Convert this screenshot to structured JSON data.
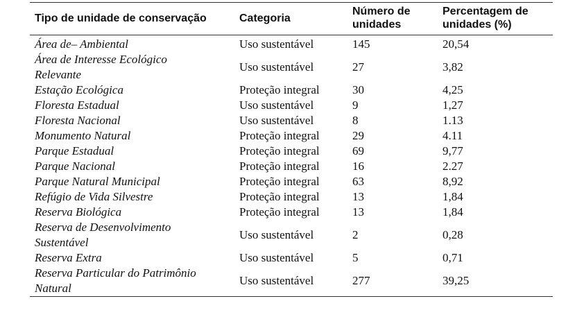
{
  "table": {
    "columns": [
      "Tipo de unidade de conservação",
      "Categoria",
      "Número de unidades",
      "Percentagem de unidades (%)"
    ],
    "rows": [
      [
        "Área de– Ambiental",
        "Uso sustentável",
        "145",
        "20,54"
      ],
      [
        "Área de Interesse Ecológico Relevante",
        "Uso sustentável",
        "27",
        "3,82"
      ],
      [
        "Estação Ecológica",
        "Proteção integral",
        "30",
        "4,25"
      ],
      [
        "Floresta Estadual",
        "Uso sustentável",
        "9",
        "1,27"
      ],
      [
        "Floresta Nacional",
        "Uso sustentável",
        "8",
        "1.13"
      ],
      [
        "Monumento Natural",
        "Proteção integral",
        "29",
        "4.11"
      ],
      [
        "Parque Estadual",
        "Proteção integral",
        "69",
        "9,77"
      ],
      [
        "Parque Nacional",
        "Proteção integral",
        "16",
        "2.27"
      ],
      [
        "Parque Natural Municipal",
        "Proteção integral",
        "63",
        "8,92"
      ],
      [
        "Refúgio de Vida Silvestre",
        "Proteção integral",
        "13",
        "1,84"
      ],
      [
        "Reserva Biológica",
        "Proteção integral",
        "13",
        "1,84"
      ],
      [
        "Reserva de Desenvolvimento Sustentável",
        "Uso sustentável",
        "2",
        "0,28"
      ],
      [
        "Reserva Extra",
        "Uso sustentável",
        "5",
        "0,71"
      ],
      [
        "Reserva Particular do Patrimônio Natural",
        "Uso sustentável",
        "277",
        "39,25"
      ]
    ]
  }
}
